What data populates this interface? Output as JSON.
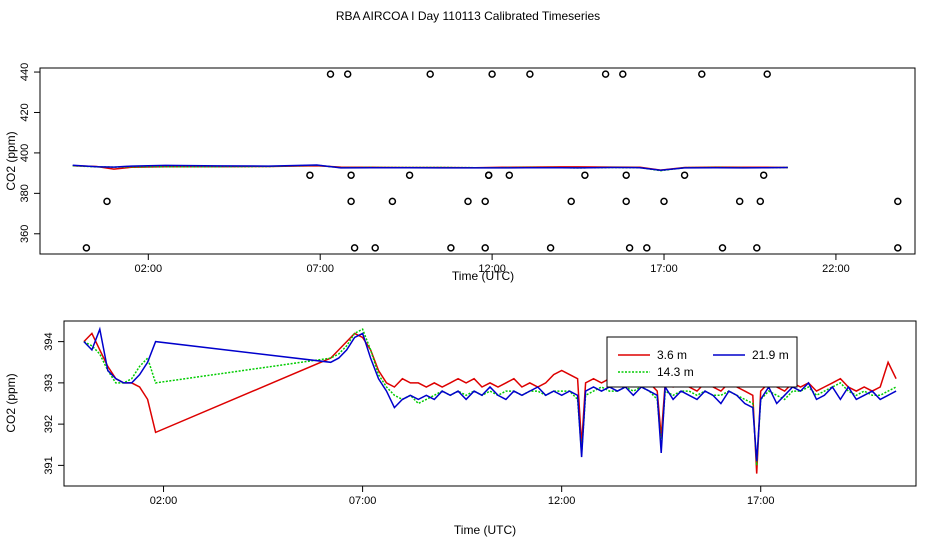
{
  "title": "RBA AIRCOA I  Day 110113  Calibrated Timeseries",
  "colors": {
    "s36": "#dd0000",
    "s143": "#00cc00",
    "s219": "#0000cc",
    "cal": "#000000"
  },
  "chart_data": [
    {
      "type": "line",
      "id": "top",
      "title": "",
      "xlabel": "Time (UTC)",
      "ylabel": "CO2 (ppm)",
      "xlim": [
        -1.15,
        24.3
      ],
      "ylim": [
        350,
        442
      ],
      "x_ticks": [
        2,
        7,
        12,
        17,
        22
      ],
      "x_tick_labels": [
        "02:00",
        "07:00",
        "12:00",
        "17:00",
        "22:00"
      ],
      "y_ticks": [
        360,
        380,
        400,
        420,
        440
      ],
      "y_tick_labels": [
        "360",
        "380",
        "400",
        "420",
        "440"
      ],
      "series": [
        {
          "name": "3.6 m",
          "color_key": "s36",
          "x": [
            -0.2,
            0.5,
            1.0,
            1.5,
            2.5,
            4,
            5.5,
            6.9,
            7.6,
            8.5,
            9.5,
            10.5,
            11.5,
            12.3,
            13,
            14,
            14.5,
            15.5,
            16.3,
            16.9,
            17.6,
            18.5,
            19.3,
            20.0,
            20.6
          ],
          "y": [
            393.7,
            393.3,
            392.0,
            392.9,
            393.2,
            393.2,
            393.3,
            393.7,
            393.0,
            392.9,
            392.8,
            392.8,
            392.7,
            392.9,
            393.0,
            393.1,
            393.1,
            393.0,
            392.9,
            391.5,
            392.8,
            393.0,
            392.9,
            392.9,
            392.8
          ]
        },
        {
          "name": "14.3 m",
          "color_key": "s143",
          "x": [
            -0.2,
            0.5,
            1.0,
            1.5,
            2.5,
            4,
            5.5,
            6.9,
            7.6,
            8.5,
            9.5,
            10.5,
            11.5,
            12.3,
            13,
            14,
            14.5,
            15.5,
            16.3,
            16.9,
            17.6,
            18.5,
            19.3,
            20.0,
            20.6
          ],
          "y": [
            393.7,
            393.1,
            393.0,
            393.1,
            393.2,
            393.2,
            393.3,
            393.9,
            392.7,
            392.8,
            392.8,
            392.8,
            392.7,
            392.7,
            392.8,
            392.7,
            392.6,
            392.8,
            392.7,
            391.2,
            392.7,
            392.8,
            392.7,
            392.7,
            392.8
          ]
        },
        {
          "name": "21.9 m",
          "color_key": "s219",
          "x": [
            -0.2,
            0.5,
            1.0,
            1.5,
            2.5,
            4,
            5.5,
            6.9,
            7.6,
            8.5,
            9.5,
            10.5,
            11.5,
            12.3,
            13,
            14,
            14.5,
            15.5,
            16.3,
            16.9,
            17.6,
            18.5,
            19.3,
            20.0,
            20.6
          ],
          "y": [
            393.9,
            393.2,
            393.0,
            393.5,
            393.8,
            393.6,
            393.5,
            394.0,
            392.6,
            392.7,
            392.7,
            392.6,
            392.6,
            392.6,
            392.7,
            392.7,
            392.6,
            392.8,
            392.7,
            391.4,
            392.6,
            392.7,
            392.6,
            392.7,
            392.8
          ]
        }
      ],
      "calibration_points": {
        "name": "calibration",
        "color_key": "cal",
        "x": [
          0.2,
          0.8,
          6.7,
          7.3,
          7.8,
          7.9,
          7.9,
          8.0,
          8.6,
          9.1,
          9.6,
          10.2,
          10.8,
          11.3,
          11.8,
          11.8,
          11.9,
          11.9,
          12.0,
          12.5,
          13.1,
          13.7,
          14.3,
          14.7,
          15.3,
          15.8,
          15.9,
          15.9,
          16.0,
          16.5,
          17.0,
          17.6,
          18.1,
          18.7,
          19.2,
          19.7,
          19.8,
          19.9,
          20.0,
          23.8,
          23.8
        ],
        "y": [
          353,
          376,
          389,
          439,
          439,
          389,
          376,
          353,
          353,
          376,
          389,
          439,
          353,
          376,
          353,
          376,
          389,
          389,
          439,
          389,
          439,
          353,
          376,
          389,
          439,
          439,
          389,
          376,
          353,
          353,
          376,
          389,
          439,
          353,
          376,
          353,
          376,
          389,
          439,
          376,
          353
        ]
      }
    },
    {
      "type": "line",
      "id": "bottom",
      "title": "",
      "xlabel": "Time (UTC)",
      "ylabel": "CO2 (ppm)",
      "xlim": [
        -0.5,
        20.9
      ],
      "ylim": [
        390.5,
        394.5
      ],
      "x_ticks": [
        2,
        7,
        12,
        17
      ],
      "x_tick_labels": [
        "02:00",
        "07:00",
        "12:00",
        "17:00"
      ],
      "y_ticks": [
        391,
        392,
        393,
        394
      ],
      "y_tick_labels": [
        "391",
        "392",
        "393",
        "394"
      ],
      "legend": {
        "position": "top-right-center",
        "columns": 2
      },
      "series": [
        {
          "name": "3.6 m",
          "color_key": "s36",
          "x": [
            0.0,
            0.2,
            0.4,
            0.6,
            0.8,
            1.0,
            1.2,
            1.4,
            1.6,
            1.8,
            6.2,
            6.4,
            6.6,
            6.8,
            7.0,
            7.2,
            7.4,
            7.6,
            7.8,
            8.0,
            8.2,
            8.4,
            8.6,
            8.8,
            9.0,
            9.2,
            9.4,
            9.6,
            9.8,
            10.0,
            10.2,
            10.4,
            10.6,
            10.8,
            11.0,
            11.2,
            11.4,
            11.6,
            11.8,
            12.0,
            12.2,
            12.4,
            12.5,
            12.6,
            12.8,
            13.0,
            13.2,
            13.4,
            13.6,
            13.8,
            14.0,
            14.2,
            14.4,
            14.5,
            14.6,
            14.8,
            15.0,
            15.2,
            15.4,
            15.6,
            15.8,
            16.0,
            16.2,
            16.4,
            16.6,
            16.8,
            16.9,
            17.0,
            17.2,
            17.4,
            17.6,
            17.8,
            18.0,
            18.2,
            18.4,
            18.6,
            18.8,
            19.0,
            19.2,
            19.4,
            19.6,
            19.8,
            20.0,
            20.2,
            20.4
          ],
          "y": [
            394.0,
            394.2,
            393.8,
            393.4,
            393.1,
            393.0,
            393.0,
            392.9,
            392.6,
            391.8,
            393.6,
            393.8,
            394.0,
            394.2,
            394.1,
            393.8,
            393.3,
            393.0,
            392.9,
            393.1,
            393.0,
            393.0,
            392.9,
            393.0,
            392.9,
            393.0,
            393.1,
            393.0,
            393.1,
            392.9,
            393.0,
            392.9,
            393.0,
            393.1,
            392.9,
            393.0,
            392.9,
            393.0,
            393.2,
            393.3,
            393.2,
            393.1,
            391.5,
            393.0,
            393.1,
            393.0,
            393.1,
            393.2,
            393.6,
            393.4,
            393.2,
            393.0,
            392.8,
            391.7,
            393.0,
            392.9,
            393.0,
            392.9,
            392.8,
            393.0,
            392.9,
            392.8,
            393.0,
            392.9,
            392.8,
            392.7,
            390.8,
            392.8,
            393.0,
            392.9,
            392.8,
            393.0,
            392.9,
            393.0,
            392.8,
            392.9,
            393.0,
            393.1,
            392.9,
            392.8,
            392.9,
            392.8,
            392.9,
            393.5,
            393.1
          ]
        },
        {
          "name": "14.3 m",
          "color_key": "s143",
          "x": [
            0.0,
            0.2,
            0.4,
            0.6,
            0.8,
            1.0,
            1.2,
            1.4,
            1.6,
            1.8,
            6.2,
            6.4,
            6.6,
            6.8,
            7.0,
            7.2,
            7.4,
            7.6,
            7.8,
            8.0,
            8.2,
            8.4,
            8.6,
            8.8,
            9.0,
            9.2,
            9.4,
            9.6,
            9.8,
            10.0,
            10.2,
            10.4,
            10.6,
            10.8,
            11.0,
            11.2,
            11.4,
            11.6,
            11.8,
            12.0,
            12.2,
            12.4,
            12.5,
            12.6,
            12.8,
            13.0,
            13.2,
            13.4,
            13.6,
            13.8,
            14.0,
            14.2,
            14.4,
            14.5,
            14.6,
            14.8,
            15.0,
            15.2,
            15.4,
            15.6,
            15.8,
            16.0,
            16.2,
            16.4,
            16.6,
            16.8,
            16.9,
            17.0,
            17.2,
            17.4,
            17.6,
            17.8,
            18.0,
            18.2,
            18.4,
            18.6,
            18.8,
            19.0,
            19.2,
            19.4,
            19.6,
            19.8,
            20.0,
            20.2,
            20.4
          ],
          "y": [
            394.0,
            393.9,
            393.7,
            393.3,
            393.0,
            393.0,
            393.1,
            393.4,
            393.6,
            393.0,
            393.6,
            393.7,
            393.9,
            394.2,
            394.3,
            393.8,
            393.2,
            392.9,
            392.7,
            392.6,
            392.7,
            392.5,
            392.6,
            392.7,
            392.8,
            392.7,
            392.8,
            392.7,
            392.8,
            392.7,
            392.8,
            392.7,
            392.8,
            392.8,
            392.7,
            392.8,
            392.8,
            392.7,
            392.8,
            392.8,
            392.8,
            392.6,
            391.3,
            392.7,
            392.8,
            392.9,
            392.8,
            392.8,
            392.9,
            392.8,
            392.9,
            392.8,
            392.6,
            391.5,
            392.8,
            392.7,
            392.8,
            392.8,
            392.7,
            392.8,
            392.7,
            392.7,
            392.8,
            392.7,
            392.6,
            392.5,
            391.0,
            392.6,
            392.8,
            392.7,
            392.6,
            392.8,
            392.8,
            392.9,
            392.7,
            392.8,
            392.9,
            393.0,
            392.8,
            392.7,
            392.8,
            392.7,
            392.7,
            392.8,
            392.9
          ]
        },
        {
          "name": "21.9 m",
          "color_key": "s219",
          "x": [
            0.0,
            0.2,
            0.4,
            0.6,
            0.8,
            1.0,
            1.2,
            1.4,
            1.6,
            1.8,
            6.2,
            6.4,
            6.6,
            6.8,
            7.0,
            7.2,
            7.4,
            7.6,
            7.8,
            8.0,
            8.2,
            8.4,
            8.6,
            8.8,
            9.0,
            9.2,
            9.4,
            9.6,
            9.8,
            10.0,
            10.2,
            10.4,
            10.6,
            10.8,
            11.0,
            11.2,
            11.4,
            11.6,
            11.8,
            12.0,
            12.2,
            12.4,
            12.5,
            12.6,
            12.8,
            13.0,
            13.2,
            13.4,
            13.6,
            13.8,
            14.0,
            14.2,
            14.4,
            14.5,
            14.6,
            14.8,
            15.0,
            15.2,
            15.4,
            15.6,
            15.8,
            16.0,
            16.2,
            16.4,
            16.6,
            16.8,
            16.9,
            17.0,
            17.2,
            17.4,
            17.6,
            17.8,
            18.0,
            18.2,
            18.4,
            18.6,
            18.8,
            19.0,
            19.2,
            19.4,
            19.6,
            19.8,
            20.0,
            20.2,
            20.4
          ],
          "y": [
            394.0,
            393.8,
            394.3,
            393.3,
            393.1,
            393.0,
            393.0,
            393.2,
            393.5,
            394.0,
            393.5,
            393.6,
            393.8,
            394.1,
            394.2,
            393.6,
            393.1,
            392.8,
            392.4,
            392.6,
            392.7,
            392.6,
            392.7,
            392.6,
            392.8,
            392.7,
            392.8,
            392.6,
            392.8,
            392.7,
            392.9,
            392.7,
            392.6,
            392.8,
            392.7,
            392.8,
            392.9,
            392.7,
            392.8,
            392.7,
            392.8,
            392.7,
            391.2,
            392.8,
            392.9,
            392.8,
            392.9,
            392.8,
            392.9,
            392.7,
            392.9,
            392.8,
            392.7,
            391.3,
            392.9,
            392.6,
            392.8,
            392.7,
            392.6,
            392.8,
            392.7,
            392.5,
            392.8,
            392.7,
            392.5,
            392.4,
            391.1,
            392.6,
            392.9,
            392.5,
            392.7,
            392.9,
            392.8,
            393.0,
            392.6,
            392.7,
            392.9,
            392.6,
            392.9,
            392.6,
            392.7,
            392.8,
            392.6,
            392.7,
            392.8
          ]
        }
      ]
    }
  ]
}
